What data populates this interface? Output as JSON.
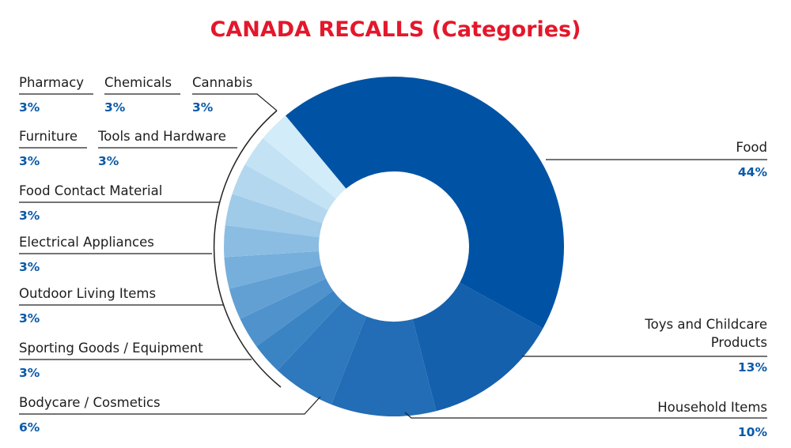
{
  "chart_data": {
    "type": "donut",
    "title": "CANADA RECALLS (Categories)",
    "categories": [
      "Food",
      "Toys and Childcare Products",
      "Household Items",
      "Bodycare / Cosmetics",
      "Sporting Goods / Equipment",
      "Outdoor Living Items",
      "Electrical Appliances",
      "Food Contact Material",
      "Tools and Hardware",
      "Furniture",
      "Cannabis",
      "Chemicals",
      "Pharmacy"
    ],
    "values": [
      44,
      13,
      10,
      6,
      3,
      3,
      3,
      3,
      3,
      3,
      3,
      3,
      3
    ],
    "value_labels": [
      "44%",
      "13%",
      "10%",
      "6%",
      "3%",
      "3%",
      "3%",
      "3%",
      "3%",
      "3%",
      "3%",
      "3%",
      "3%"
    ],
    "colors": [
      "#0053a4",
      "#1460ac",
      "#226db5",
      "#2e78bd",
      "#3b84c4",
      "#4f92cc",
      "#62a0d4",
      "#76afdb",
      "#8bbde2",
      "#9fcae8",
      "#b3d7ee",
      "#c3e2f3",
      "#d3ecf9"
    ]
  }
}
